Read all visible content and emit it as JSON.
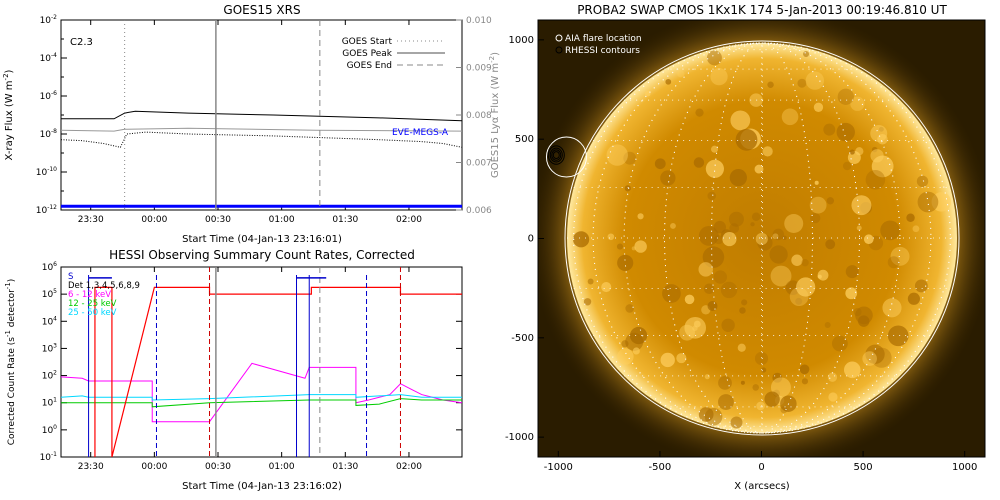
{
  "chart_data": [
    {
      "type": "line",
      "title": "GOES15 XRS",
      "xlabel": "Start Time (04-Jan-13 23:16:01)",
      "ylabel_left": "X-ray Flux (W m",
      "ylabel_left_sup": "-2",
      "ylabel_right": "GOES15 Lyα Flux (W m",
      "ylabel_right_sup": "-2",
      "x_ticks": [
        "23:30",
        "00:00",
        "00:30",
        "01:00",
        "01:30",
        "02:00"
      ],
      "x_range_minutes": [
        0,
        189
      ],
      "y_left_scale": "log",
      "y_left_range_exp": [
        -12,
        -2
      ],
      "y_left_ticks_base": "10",
      "y_left_ticks_exp": [
        "-2",
        "-4",
        "-6",
        "-8",
        "-10",
        "-12"
      ],
      "y_right_range": [
        0.006,
        0.01
      ],
      "y_right_ticks": [
        "0.010",
        "0.009",
        "0.008",
        "0.007",
        "0.006"
      ],
      "annotation": "C2.3",
      "eve_label": "EVE-MEGS-A",
      "legend": [
        "GOES Start",
        "GOES Peak",
        "GOES End"
      ],
      "goes_start_min": 30,
      "goes_peak_min": 73,
      "goes_end_min": 122,
      "series": [
        {
          "name": "long",
          "color": "#000000",
          "x": [
            0,
            25,
            30,
            35,
            60,
            100,
            150,
            189
          ],
          "y_exp": [
            -7.2,
            -7.2,
            -6.9,
            -6.8,
            -6.9,
            -7.0,
            -7.15,
            -7.3
          ]
        },
        {
          "name": "lya",
          "color": "#999999",
          "x": [
            0,
            25,
            30,
            60,
            120,
            189
          ],
          "y_exp": [
            -7.8,
            -7.85,
            -7.75,
            -7.7,
            -7.8,
            -7.85
          ]
        },
        {
          "name": "short",
          "color": "#000000",
          "x": [
            0,
            10,
            20,
            28,
            31,
            40,
            60,
            100,
            150,
            170,
            180,
            189
          ],
          "y_exp": [
            -8.3,
            -8.35,
            -8.5,
            -8.7,
            -8.0,
            -7.9,
            -8.0,
            -8.1,
            -8.3,
            -8.4,
            -8.5,
            -8.7
          ]
        },
        {
          "name": "EVE-MEGS-A",
          "color": "#0000ff",
          "x": [
            0,
            189
          ],
          "y_exp": [
            -11.8,
            -11.8
          ]
        }
      ]
    },
    {
      "type": "line",
      "title": "HESSI Observing Summary Count Rates, Corrected",
      "xlabel": "Start Time (04-Jan-13 23:16:02)",
      "ylabel": "Corrected Count Rate (s",
      "ylabel_sup": "-1",
      "ylabel_tail": " detector",
      "ylabel_sup2": "-1",
      "x_ticks": [
        "23:30",
        "00:00",
        "00:30",
        "01:00",
        "01:30",
        "02:00"
      ],
      "x_range_minutes": [
        0,
        189
      ],
      "y_scale": "log",
      "y_range_exp": [
        -1,
        6
      ],
      "y_ticks_base": "10",
      "y_ticks_exp": [
        "6",
        "5",
        "4",
        "3",
        "2",
        "1",
        "0",
        "-1"
      ],
      "legend": [
        {
          "label": "S",
          "color": "#0000cc"
        },
        {
          "label": "Det 1,3,4,5,6,8,9",
          "color": "#000000"
        },
        {
          "label": "6 - 12 keV",
          "color": "#ff00ff"
        },
        {
          "label": "12 - 25 keV",
          "color": "#00cc00"
        },
        {
          "label": "25 - 50 keV",
          "color": "#00d8ff"
        }
      ],
      "series": [
        {
          "name": "6 - 12 keV",
          "color": "#ff00ff",
          "x": [
            0,
            10,
            13,
            43,
            43,
            50,
            52,
            70,
            90,
            115,
            117,
            139,
            139,
            145,
            150,
            155,
            160,
            165,
            170,
            175,
            180,
            189
          ],
          "y_exp": [
            1.95,
            1.9,
            1.8,
            1.8,
            0.3,
            0.3,
            0.3,
            0.3,
            2.45,
            1.9,
            2.3,
            2.3,
            1.0,
            1.1,
            1.2,
            1.3,
            1.7,
            1.5,
            1.3,
            1.2,
            1.1,
            1.0
          ]
        },
        {
          "name": "12 - 25 keV",
          "color": "#00cc00",
          "x": [
            0,
            10,
            13,
            43,
            43,
            70,
            117,
            139,
            139,
            150,
            160,
            170,
            189
          ],
          "y_exp": [
            1.0,
            1.0,
            1.0,
            1.0,
            0.85,
            1.0,
            1.1,
            1.1,
            0.9,
            0.95,
            1.15,
            1.1,
            1.1
          ]
        },
        {
          "name": "25 - 50 keV",
          "color": "#00d8ff",
          "x": [
            0,
            10,
            13,
            43,
            43,
            70,
            117,
            139,
            139,
            150,
            160,
            170,
            189
          ],
          "y_exp": [
            1.2,
            1.25,
            1.2,
            1.2,
            1.1,
            1.15,
            1.3,
            1.3,
            1.2,
            1.25,
            1.3,
            1.2,
            1.2
          ]
        },
        {
          "name": "attenuator",
          "color": "#ff0000",
          "x": [
            16,
            16,
            24,
            24,
            44,
            70,
            70,
            118,
            118,
            125,
            135,
            160,
            160,
            189
          ],
          "y_exp": [
            -1,
            5.25,
            5.25,
            -1,
            5.25,
            5.25,
            5.0,
            5.0,
            5.25,
            5.25,
            5.25,
            5.25,
            5.0,
            5.0
          ]
        }
      ]
    },
    {
      "type": "image",
      "title": "PROBA2 SWAP CMOS 1Kx1K 174   5-Jan-2013 00:19:46.810 UT",
      "xlabel": "X (arcsecs)",
      "x_ticks": [
        "-1000",
        "-500",
        "0",
        "500",
        "1000"
      ],
      "y_ticks": [
        "1000",
        "500",
        "0",
        "-500",
        "-1000"
      ],
      "x_range": [
        -1100,
        1100
      ],
      "y_range": [
        -1100,
        1100
      ],
      "legend": [
        "AIA flare location",
        "RHESSI contours"
      ],
      "flare_location": [
        -960,
        410
      ],
      "rhessi_contour_center": [
        -1010,
        420
      ]
    }
  ]
}
